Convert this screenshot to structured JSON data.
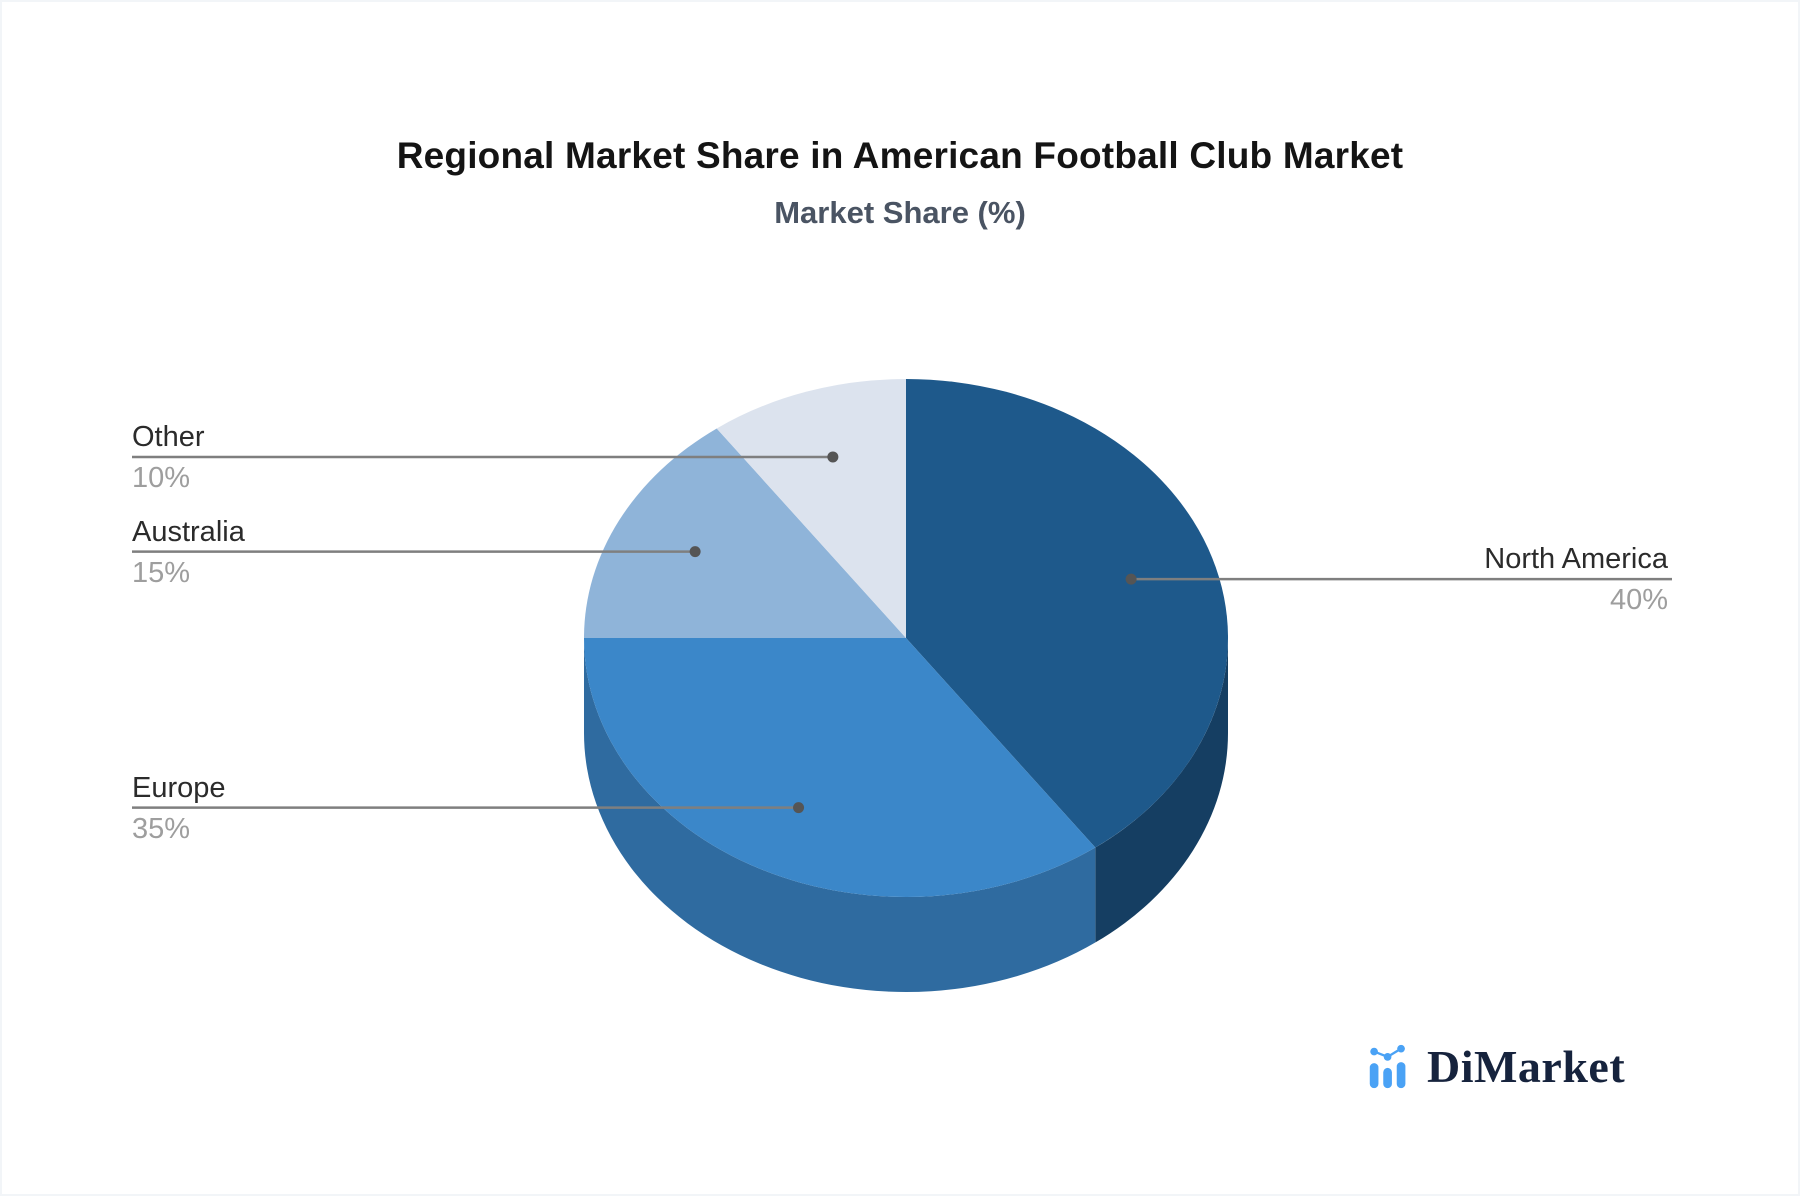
{
  "title": "Regional Market Share in American Football Club Market",
  "subtitle": "Market Share (%)",
  "chart_data": {
    "type": "pie",
    "style": "3d",
    "title": "Regional Market Share in American Football Club Market",
    "subtitle": "Market Share (%)",
    "unit": "%",
    "start_angle_deg": 0,
    "clockwise": true,
    "legend_position": "callout-labels",
    "slices": [
      {
        "label": "North America",
        "value": 40,
        "display": "40%",
        "color": "#1e598b",
        "side_color": "#153e62",
        "label_side": "right"
      },
      {
        "label": "Europe",
        "value": 35,
        "display": "35%",
        "color": "#3b87c9",
        "side_color": "#2f6ba0",
        "label_side": "left"
      },
      {
        "label": "Australia",
        "value": 15,
        "display": "15%",
        "color": "#8fb4d9",
        "side_color": "#7ea3cc",
        "label_side": "left"
      },
      {
        "label": "Other",
        "value": 10,
        "display": "10%",
        "color": "#dce3ee",
        "side_color": "#c5cedd",
        "label_side": "left"
      }
    ]
  },
  "palette": {
    "background": "#ffffff",
    "title_text": "#141414",
    "subtitle_text": "#4a5463",
    "label_text": "#2b2b2b",
    "value_text": "#9e9e9e",
    "leader_line": "#7f7f7f",
    "leader_dot": "#555555",
    "logo_navy": "#16233d",
    "logo_blue": "#4aa2f5"
  },
  "logo": {
    "text": "DiMarket",
    "icon": "bar-line-chart-icon"
  }
}
